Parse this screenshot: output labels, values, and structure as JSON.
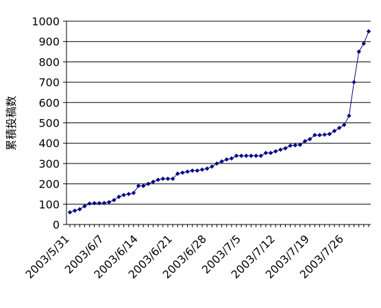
{
  "chart_data": {
    "type": "line",
    "title": "",
    "xlabel": "",
    "ylabel": "累積投稿数",
    "ylim": [
      0,
      1000
    ],
    "yticks": [
      0,
      100,
      200,
      300,
      400,
      500,
      600,
      700,
      800,
      900,
      1000
    ],
    "grid": "horizontal",
    "legend": "none",
    "line_color": "#000080",
    "marker": "diamond",
    "xtick_labels": [
      "2003/5/31",
      "2003/6/7",
      "2003/6/14",
      "2003/6/21",
      "2003/6/28",
      "2003/7/5",
      "2003/7/12",
      "2003/7/19",
      "2003/7/26"
    ],
    "x": [
      "2003/5/31",
      "2003/6/1",
      "2003/6/2",
      "2003/6/3",
      "2003/6/4",
      "2003/6/5",
      "2003/6/6",
      "2003/6/7",
      "2003/6/8",
      "2003/6/9",
      "2003/6/10",
      "2003/6/11",
      "2003/6/12",
      "2003/6/13",
      "2003/6/14",
      "2003/6/15",
      "2003/6/16",
      "2003/6/17",
      "2003/6/18",
      "2003/6/19",
      "2003/6/20",
      "2003/6/21",
      "2003/6/22",
      "2003/6/23",
      "2003/6/24",
      "2003/6/25",
      "2003/6/26",
      "2003/6/27",
      "2003/6/28",
      "2003/6/29",
      "2003/6/30",
      "2003/7/1",
      "2003/7/2",
      "2003/7/3",
      "2003/7/4",
      "2003/7/5",
      "2003/7/6",
      "2003/7/7",
      "2003/7/8",
      "2003/7/9",
      "2003/7/10",
      "2003/7/11",
      "2003/7/12",
      "2003/7/13",
      "2003/7/14",
      "2003/7/15",
      "2003/7/16",
      "2003/7/17",
      "2003/7/18",
      "2003/7/19",
      "2003/7/20",
      "2003/7/21",
      "2003/7/22",
      "2003/7/23",
      "2003/7/24",
      "2003/7/25",
      "2003/7/26",
      "2003/7/27",
      "2003/7/28",
      "2003/7/29",
      "2003/7/30",
      "2003/7/31"
    ],
    "values": [
      60,
      68,
      75,
      90,
      103,
      105,
      105,
      106,
      110,
      120,
      136,
      145,
      150,
      155,
      190,
      190,
      200,
      210,
      220,
      225,
      225,
      225,
      250,
      255,
      260,
      265,
      265,
      270,
      275,
      285,
      300,
      310,
      320,
      325,
      338,
      338,
      338,
      338,
      338,
      338,
      352,
      352,
      360,
      368,
      375,
      388,
      390,
      392,
      410,
      420,
      440,
      440,
      442,
      445,
      460,
      475,
      490,
      535,
      700,
      850,
      890,
      950
    ]
  }
}
